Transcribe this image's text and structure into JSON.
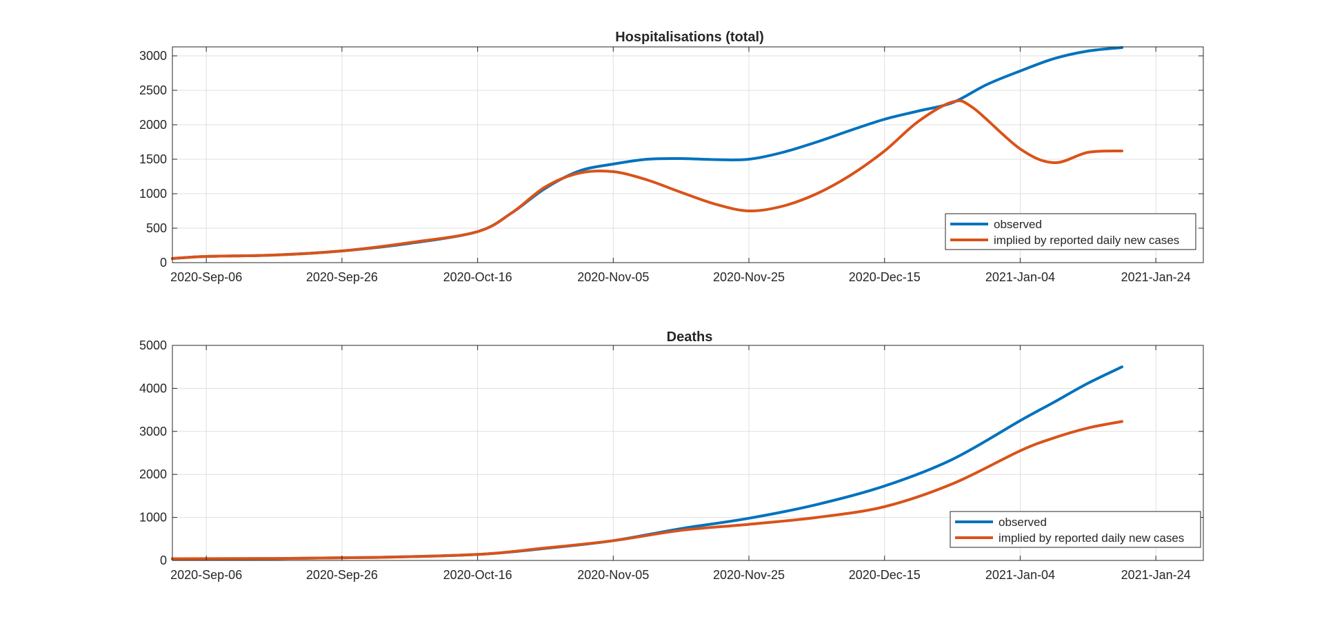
{
  "colors": {
    "background": "#ffffff",
    "axis": "#262626",
    "grid": "#dfdfdf",
    "observed": "#0072BD",
    "implied": "#D95319"
  },
  "chart_data": [
    {
      "type": "line",
      "title": "Hospitalisations (total)",
      "xlabel": "",
      "ylabel": "",
      "x_type": "date",
      "xlim": [
        "2020-Sep-01",
        "2021-Jan-31"
      ],
      "ylim": [
        0,
        3130
      ],
      "x_ticks": [
        "2020-Sep-06",
        "2020-Sep-26",
        "2020-Oct-16",
        "2020-Nov-05",
        "2020-Nov-25",
        "2020-Dec-15",
        "2021-Jan-04",
        "2021-Jan-24"
      ],
      "y_ticks": [
        0,
        500,
        1000,
        1500,
        2000,
        2500,
        3000
      ],
      "grid": true,
      "legend_position": "bottom-right",
      "series": [
        {
          "name": "observed",
          "color": "#0072BD",
          "x": [
            "2020-Sep-01",
            "2020-Sep-06",
            "2020-Sep-16",
            "2020-Sep-26",
            "2020-Oct-06",
            "2020-Oct-16",
            "2020-Oct-21",
            "2020-Oct-26",
            "2020-Oct-31",
            "2020-Nov-05",
            "2020-Nov-10",
            "2020-Nov-15",
            "2020-Nov-20",
            "2020-Nov-25",
            "2020-Nov-30",
            "2020-Dec-05",
            "2020-Dec-10",
            "2020-Dec-15",
            "2020-Dec-20",
            "2020-Dec-25",
            "2020-Dec-30",
            "2021-Jan-04",
            "2021-Jan-09",
            "2021-Jan-14",
            "2021-Jan-19"
          ],
          "y": [
            60,
            90,
            110,
            170,
            280,
            450,
            720,
            1080,
            1330,
            1430,
            1500,
            1510,
            1495,
            1500,
            1600,
            1750,
            1920,
            2080,
            2200,
            2320,
            2580,
            2780,
            2960,
            3070,
            3120
          ]
        },
        {
          "name": "implied by reported daily new cases",
          "color": "#D95319",
          "x": [
            "2020-Sep-01",
            "2020-Sep-06",
            "2020-Sep-16",
            "2020-Sep-26",
            "2020-Oct-06",
            "2020-Oct-16",
            "2020-Oct-21",
            "2020-Oct-26",
            "2020-Oct-31",
            "2020-Nov-05",
            "2020-Nov-10",
            "2020-Nov-15",
            "2020-Nov-20",
            "2020-Nov-25",
            "2020-Nov-30",
            "2020-Dec-05",
            "2020-Dec-10",
            "2020-Dec-15",
            "2020-Dec-20",
            "2020-Dec-25",
            "2020-Dec-28",
            "2021-Jan-04",
            "2021-Jan-09",
            "2021-Jan-14",
            "2021-Jan-19"
          ],
          "y": [
            60,
            90,
            110,
            170,
            290,
            450,
            720,
            1100,
            1300,
            1320,
            1200,
            1020,
            850,
            750,
            820,
            1000,
            1270,
            1620,
            2050,
            2330,
            2250,
            1650,
            1450,
            1600,
            1620
          ]
        }
      ]
    },
    {
      "type": "line",
      "title": "Deaths",
      "xlabel": "",
      "ylabel": "",
      "x_type": "date",
      "xlim": [
        "2020-Sep-01",
        "2021-Jan-31"
      ],
      "ylim": [
        0,
        5000
      ],
      "x_ticks": [
        "2020-Sep-06",
        "2020-Sep-26",
        "2020-Oct-16",
        "2020-Nov-05",
        "2020-Nov-25",
        "2020-Dec-15",
        "2021-Jan-04",
        "2021-Jan-24"
      ],
      "y_ticks": [
        0,
        1000,
        2000,
        3000,
        4000,
        5000
      ],
      "grid": true,
      "legend_position": "bottom-right",
      "series": [
        {
          "name": "observed",
          "color": "#0072BD",
          "x": [
            "2020-Sep-01",
            "2020-Sep-16",
            "2020-Oct-01",
            "2020-Oct-16",
            "2020-Oct-26",
            "2020-Nov-05",
            "2020-Nov-15",
            "2020-Nov-25",
            "2020-Dec-05",
            "2020-Dec-15",
            "2020-Dec-25",
            "2021-Jan-04",
            "2021-Jan-09",
            "2021-Jan-14",
            "2021-Jan-19"
          ],
          "y": [
            40,
            45,
            70,
            140,
            280,
            460,
            740,
            980,
            1300,
            1730,
            2350,
            3250,
            3680,
            4120,
            4500
          ]
        },
        {
          "name": "implied by reported daily new cases",
          "color": "#D95319",
          "x": [
            "2020-Sep-01",
            "2020-Sep-16",
            "2020-Oct-01",
            "2020-Oct-16",
            "2020-Oct-26",
            "2020-Nov-05",
            "2020-Nov-15",
            "2020-Nov-25",
            "2020-Dec-05",
            "2020-Dec-15",
            "2020-Dec-25",
            "2021-Jan-04",
            "2021-Jan-09",
            "2021-Jan-14",
            "2021-Jan-19"
          ],
          "y": [
            40,
            45,
            70,
            140,
            290,
            460,
            700,
            840,
            1000,
            1250,
            1780,
            2550,
            2850,
            3080,
            3230
          ]
        }
      ]
    }
  ]
}
